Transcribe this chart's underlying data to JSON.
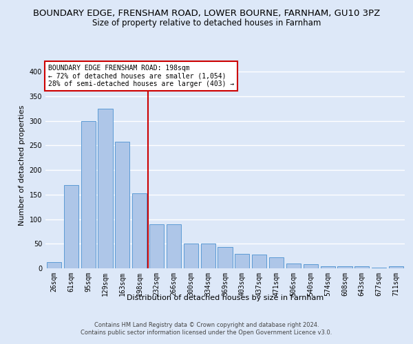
{
  "title": "BOUNDARY EDGE, FRENSHAM ROAD, LOWER BOURNE, FARNHAM, GU10 3PZ",
  "subtitle": "Size of property relative to detached houses in Farnham",
  "xlabel": "Distribution of detached houses by size in Farnham",
  "ylabel": "Number of detached properties",
  "categories": [
    "26sqm",
    "61sqm",
    "95sqm",
    "129sqm",
    "163sqm",
    "198sqm",
    "232sqm",
    "266sqm",
    "300sqm",
    "334sqm",
    "369sqm",
    "403sqm",
    "437sqm",
    "471sqm",
    "506sqm",
    "540sqm",
    "574sqm",
    "608sqm",
    "643sqm",
    "677sqm",
    "711sqm"
  ],
  "values": [
    13,
    170,
    300,
    325,
    257,
    152,
    90,
    90,
    50,
    50,
    43,
    29,
    28,
    22,
    10,
    9,
    4,
    4,
    4,
    2,
    4
  ],
  "bar_color": "#aec6e8",
  "bar_edge_color": "#5b9bd5",
  "vline_x": 5.5,
  "vline_color": "#cc0000",
  "annotation_text": "BOUNDARY EDGE FRENSHAM ROAD: 198sqm\n← 72% of detached houses are smaller (1,054)\n28% of semi-detached houses are larger (403) →",
  "annotation_box_color": "#ffffff",
  "annotation_box_edge_color": "#cc0000",
  "ylim": [
    0,
    420
  ],
  "yticks": [
    0,
    50,
    100,
    150,
    200,
    250,
    300,
    350,
    400
  ],
  "footer_text": "Contains HM Land Registry data © Crown copyright and database right 2024.\nContains public sector information licensed under the Open Government Licence v3.0.",
  "background_color": "#dde8f8",
  "grid_color": "#ffffff",
  "title_fontsize": 9.5,
  "subtitle_fontsize": 8.5,
  "axis_label_fontsize": 8,
  "tick_fontsize": 7,
  "annotation_fontsize": 7,
  "footer_fontsize": 6
}
